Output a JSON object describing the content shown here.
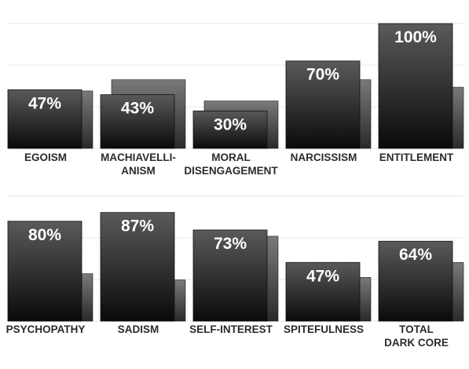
{
  "colors": {
    "bar_top": "#5a5a5a",
    "bar_bottom": "#0a0a0a",
    "back_bar_top": "#7a7a7a",
    "back_bar_bottom": "#2a2a2a",
    "grid": "#e6e6e6",
    "label": "#2b2b2b",
    "value_text": "#ffffff"
  },
  "chart_data": [
    {
      "type": "bar",
      "ylim": [
        0,
        100
      ],
      "grid": true,
      "categories": [
        [
          "EGOISM"
        ],
        [
          "MACHIAVELLI-",
          "ANISM"
        ],
        [
          "MORAL",
          "DISENGAGEMENT"
        ],
        [
          "NARCISSISM"
        ],
        [
          "ENTITLEMENT"
        ]
      ],
      "series": [
        {
          "values": [
            47,
            43,
            30,
            70,
            100
          ],
          "labels": [
            "47%",
            "43%",
            "30%",
            "70%",
            "100%"
          ]
        },
        {
          "values": [
            46,
            55,
            38,
            55,
            49
          ]
        }
      ]
    },
    {
      "type": "bar",
      "ylim": [
        0,
        100
      ],
      "grid": true,
      "categories": [
        [
          "PSYCHOPATHY"
        ],
        [
          "SADISM"
        ],
        [
          "SELF-INTEREST"
        ],
        [
          "SPITEFULNESS"
        ],
        [
          "TOTAL",
          "DARK CORE"
        ]
      ],
      "series": [
        {
          "values": [
            80,
            87,
            73,
            47,
            64
          ],
          "labels": [
            "80%",
            "87%",
            "73%",
            "47%",
            "64%"
          ]
        },
        {
          "values": [
            38,
            33,
            68,
            35,
            47
          ]
        }
      ]
    }
  ]
}
